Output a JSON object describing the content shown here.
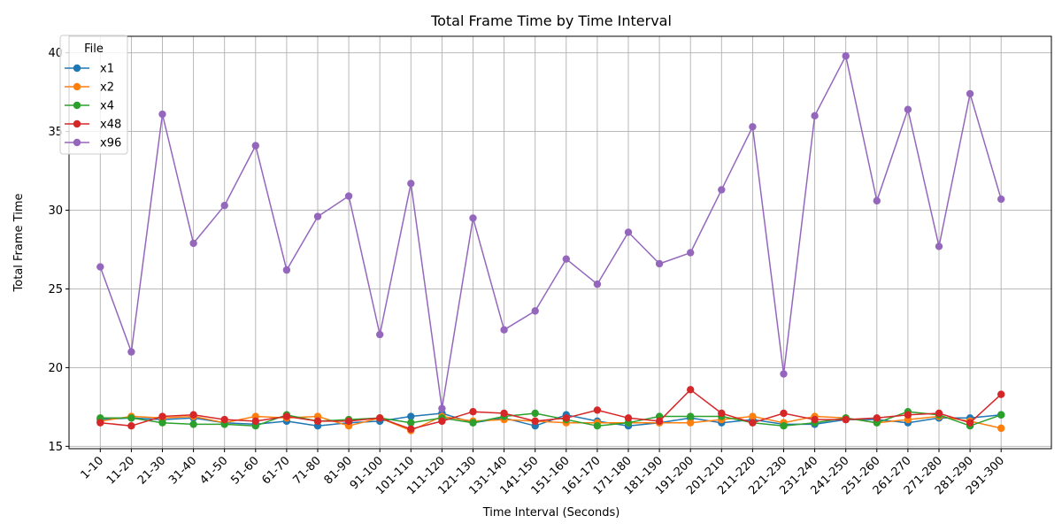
{
  "chart_data": {
    "type": "line",
    "title": "Total Frame Time by Time Interval",
    "xlabel": "Time Interval (Seconds)",
    "ylabel": "Total Frame Time",
    "ylim": [
      14.85,
      41.05
    ],
    "yticks": [
      15,
      20,
      25,
      30,
      35,
      40
    ],
    "grid": true,
    "legend": {
      "title": "File",
      "placement": "top-left"
    },
    "categories": [
      "1-10",
      "11-20",
      "21-30",
      "31-40",
      "41-50",
      "51-60",
      "61-70",
      "71-80",
      "81-90",
      "91-100",
      "101-110",
      "111-120",
      "121-130",
      "131-140",
      "141-150",
      "151-160",
      "161-170",
      "171-180",
      "181-190",
      "191-200",
      "201-210",
      "211-220",
      "221-230",
      "231-240",
      "241-250",
      "251-260",
      "261-270",
      "271-280",
      "281-290",
      "291-300"
    ],
    "series": [
      {
        "name": "x1",
        "color": "#1f77b4",
        "values": [
          16.7,
          16.8,
          16.7,
          16.8,
          16.5,
          16.4,
          16.6,
          16.3,
          16.5,
          16.6,
          16.9,
          17.1,
          16.5,
          16.8,
          16.3,
          17.0,
          16.6,
          16.3,
          16.5,
          16.8,
          16.5,
          16.7,
          16.4,
          16.4,
          16.7,
          16.7,
          16.5,
          16.8,
          16.8,
          17.0
        ]
      },
      {
        "name": "x2",
        "color": "#ff7f0e",
        "values": [
          16.6,
          16.9,
          16.8,
          16.9,
          16.5,
          16.9,
          16.8,
          16.9,
          16.3,
          16.8,
          16.0,
          16.9,
          16.6,
          16.7,
          16.6,
          16.5,
          16.5,
          16.5,
          16.5,
          16.5,
          16.7,
          16.9,
          16.5,
          16.9,
          16.8,
          16.5,
          16.7,
          16.9,
          16.6,
          16.15
        ]
      },
      {
        "name": "x4",
        "color": "#2ca02c",
        "values": [
          16.8,
          16.8,
          16.5,
          16.4,
          16.4,
          16.3,
          17.0,
          16.6,
          16.7,
          16.8,
          16.5,
          16.8,
          16.5,
          16.9,
          17.1,
          16.7,
          16.3,
          16.5,
          16.9,
          16.9,
          16.9,
          16.5,
          16.3,
          16.5,
          16.8,
          16.5,
          17.2,
          17.0,
          16.3,
          17.0
        ]
      },
      {
        "name": "x48",
        "color": "#d62728",
        "values": [
          16.5,
          16.3,
          16.9,
          17.0,
          16.7,
          16.6,
          16.9,
          16.6,
          16.6,
          16.8,
          16.1,
          16.6,
          17.2,
          17.1,
          16.6,
          16.8,
          17.3,
          16.8,
          16.6,
          18.6,
          17.1,
          16.5,
          17.1,
          16.7,
          16.7,
          16.8,
          17.0,
          17.1,
          16.5,
          18.3
        ]
      },
      {
        "name": "x96",
        "color": "#9467bd",
        "values": [
          26.4,
          21.0,
          36.1,
          27.9,
          30.3,
          34.1,
          26.2,
          29.6,
          30.9,
          22.1,
          31.7,
          17.4,
          29.5,
          22.4,
          23.6,
          26.9,
          25.3,
          28.6,
          26.6,
          27.3,
          31.3,
          35.3,
          19.6,
          36.0,
          39.8,
          30.6,
          36.4,
          27.7,
          37.4,
          30.7
        ]
      }
    ]
  }
}
